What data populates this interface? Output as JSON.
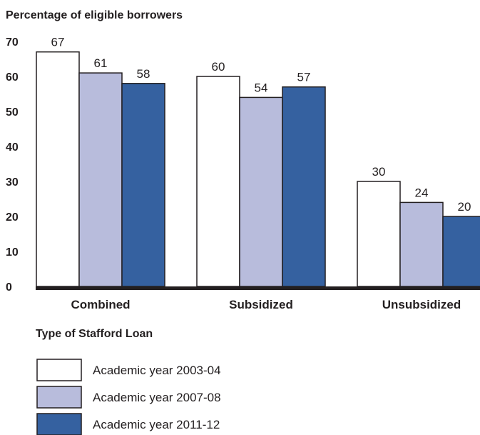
{
  "chart_data": {
    "type": "bar",
    "ylabel": "Percentage of eligible borrowers",
    "xlabel": "Type of Stafford Loan",
    "categories": [
      "Combined",
      "Subsidized",
      "Unsubsidized"
    ],
    "ylim": [
      0,
      70
    ],
    "yticks": [
      "0",
      "10",
      "20",
      "30",
      "40",
      "50",
      "60",
      "70"
    ],
    "grid": false,
    "legend_position": "bottom-left",
    "series": [
      {
        "name": "Academic year 2003-04",
        "values": [
          67,
          60,
          30
        ],
        "color": "#ffffff"
      },
      {
        "name": "Academic year 2007-08",
        "values": [
          61,
          54,
          24
        ],
        "color": "#b8bcdc"
      },
      {
        "name": "Academic year 2011-12",
        "values": [
          58,
          57,
          20
        ],
        "color": "#3561a0"
      }
    ],
    "value_labels": [
      [
        "67",
        "60",
        "30"
      ],
      [
        "61",
        "54",
        "24"
      ],
      [
        "58",
        "57",
        "20"
      ]
    ]
  }
}
